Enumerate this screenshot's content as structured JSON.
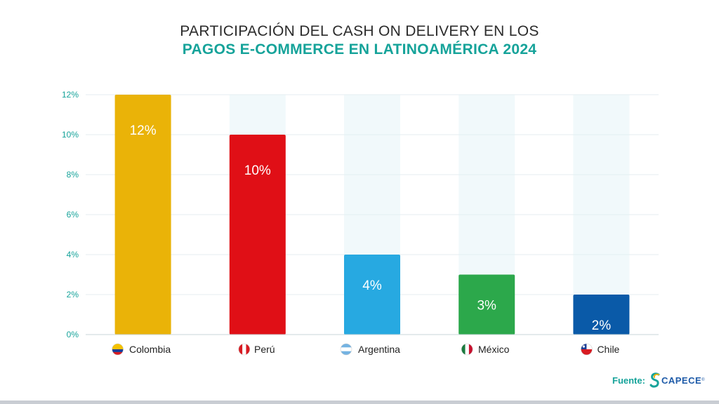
{
  "header": {
    "title_line1": "PARTICIPACIÓN DEL CASH ON DELIVERY EN LOS",
    "title_line2": "PAGOS E-COMMERCE EN LATINOAMÉRICA 2024"
  },
  "source": {
    "label": "Fuente:",
    "logo_text": "CAPECE",
    "logo_mark": "®"
  },
  "colors": {
    "title_accent": "#16a39a",
    "axis_text": "#16a39a",
    "Colombia": "#eab308",
    "Perú": "#e00f16",
    "Argentina": "#27a9e1",
    "México": "#2ca84b",
    "Chile": "#0a5aa8"
  },
  "chart_data": {
    "type": "bar",
    "categories": [
      "Colombia",
      "Perú",
      "Argentina",
      "México",
      "Chile"
    ],
    "values": [
      12,
      10,
      4,
      3,
      2
    ],
    "data_labels": [
      "12%",
      "10%",
      "4%",
      "3%",
      "2%"
    ],
    "y_ticks": [
      "0%",
      "2%",
      "4%",
      "6%",
      "8%",
      "10%",
      "12%"
    ],
    "ylim": [
      0,
      12
    ],
    "grid": true,
    "flag_icons": [
      "colombia-flag-icon",
      "peru-flag-icon",
      "argentina-flag-icon",
      "mexico-flag-icon",
      "chile-flag-icon"
    ]
  }
}
